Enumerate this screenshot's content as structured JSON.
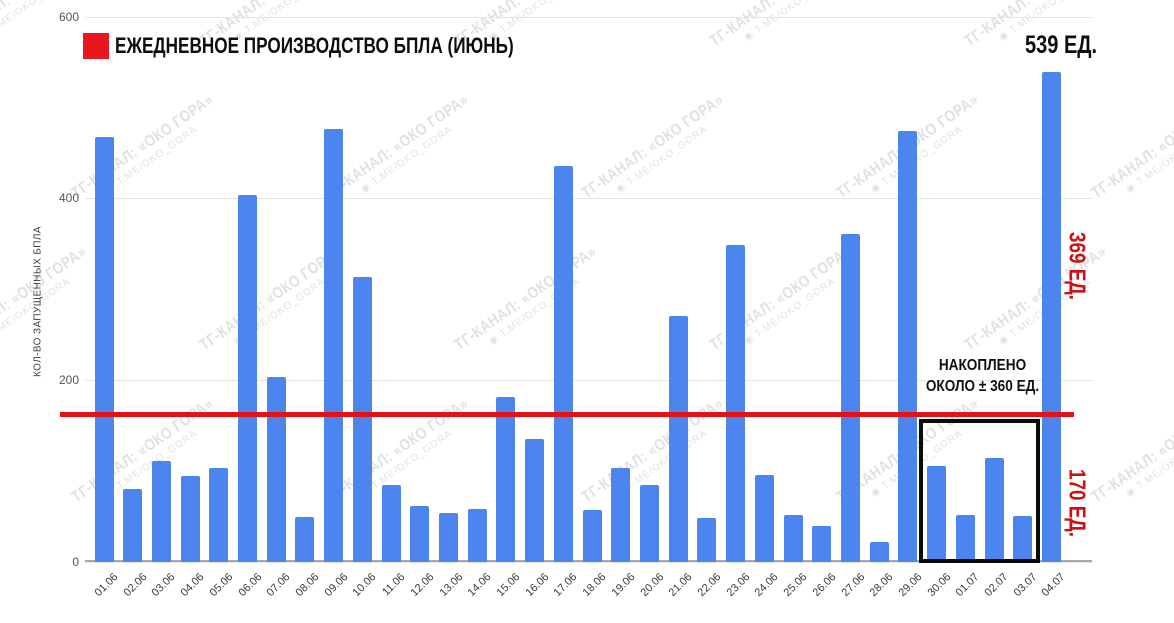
{
  "header": {
    "legend_label": "ЕЖЕДНЕВНОЕ ПРОИЗВОДСТВО БПЛА (ИЮНЬ)",
    "peak_label": "539 ЕД."
  },
  "side_labels": {
    "upper": "369 ЕД.",
    "lower": "170 ЕД."
  },
  "annotation": {
    "line1": "НАКОПЛЕНО",
    "line2": "ОКОЛО ± 360 ЕД."
  },
  "y_axis": {
    "title": "КОЛ-ВО ЗАПУЩЕННЫХ БПЛА"
  },
  "watermark": {
    "line1": "ТГ-КАНАЛ: «ОКО ГОРА»",
    "line2": "T.ME/OKO_GORA",
    "eye_icon": "◉"
  },
  "colors": {
    "bar": "#4b85ed",
    "red_line": "#e01418",
    "legend_square": "#ea161d",
    "red_text": "#cb1117",
    "gridline": "#e4e4e4",
    "baseline": "#a8a8a8",
    "annotation_box": "#0a0a0a"
  },
  "chart_data": {
    "type": "bar",
    "title": "ЕЖЕДНЕВНОЕ ПРОИЗВОДСТВО БПЛА (ИЮНЬ)",
    "xlabel": "",
    "ylabel": "КОЛ-ВО ЗАПУЩЕННЫХ БПЛА",
    "ylim": [
      0,
      600
    ],
    "yticks": [
      0,
      200,
      400,
      600
    ],
    "grid": true,
    "legend_position": "top-left",
    "categories": [
      "01.06",
      "02.06",
      "03.06",
      "04.06",
      "05.06",
      "06.06",
      "07.06",
      "08.06",
      "09.06",
      "10.06",
      "11.06",
      "12.06",
      "13.06",
      "14.06",
      "15.06",
      "16.06",
      "17.06",
      "18.06",
      "19.06",
      "20.06",
      "21.06",
      "22.06",
      "23.06",
      "24.06",
      "25.06",
      "26.06",
      "27.06",
      "28.06",
      "29.06",
      "30.06",
      "01.07",
      "02.07",
      "03.07",
      "04.07"
    ],
    "values": [
      468,
      80,
      111,
      95,
      103,
      404,
      204,
      49,
      477,
      314,
      85,
      62,
      54,
      58,
      182,
      135,
      436,
      57,
      104,
      85,
      271,
      48,
      349,
      96,
      52,
      40,
      361,
      22,
      474,
      106,
      52,
      114,
      51,
      539
    ],
    "reference_line": {
      "value": 163,
      "label_above": "369 ЕД.",
      "label_below": "170 ЕД."
    },
    "annotations": {
      "last_bar_label": "539 ЕД.",
      "box": {
        "categories": [
          "30.06",
          "01.07",
          "02.07",
          "03.07"
        ],
        "label": "НАКОПЛЕНО ОКОЛО ± 360 ЕД."
      }
    }
  }
}
